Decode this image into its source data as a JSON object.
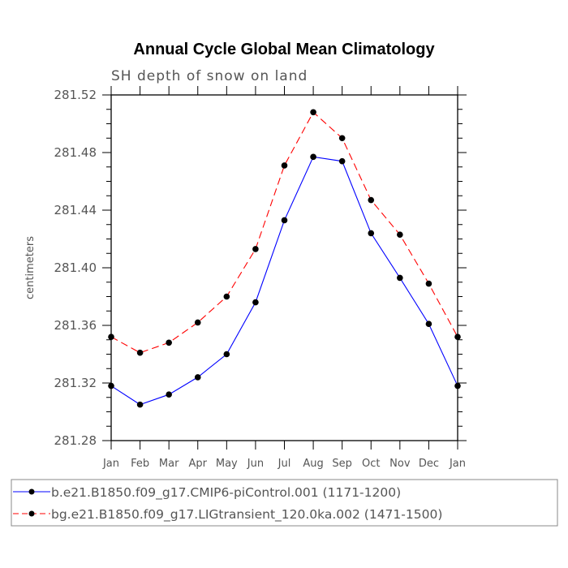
{
  "chart_data": {
    "type": "line",
    "title": "Annual Cycle Global Mean Climatology",
    "subtitle": "SH depth of snow on land",
    "xlabel": "",
    "ylabel": "centimeters",
    "ylim": [
      281.28,
      281.52
    ],
    "yticks": [
      "281.28",
      "281.32",
      "281.36",
      "281.40",
      "281.44",
      "281.48",
      "281.52"
    ],
    "categories": [
      "Jan",
      "Feb",
      "Mar",
      "Apr",
      "May",
      "Jun",
      "Jul",
      "Aug",
      "Sep",
      "Oct",
      "Nov",
      "Dec",
      "Jan"
    ],
    "grid": false,
    "legend_placement": "bottom",
    "series": [
      {
        "name": "b.e21.B1850.f09_g17.CMIP6-piControl.001 (1171-1200)",
        "color": "#0000ff",
        "style": "solid",
        "values": [
          281.318,
          281.305,
          281.312,
          281.324,
          281.34,
          281.376,
          281.433,
          281.477,
          281.474,
          281.424,
          281.393,
          281.361,
          281.318
        ]
      },
      {
        "name": "bg.e21.B1850.f09_g17.LIGtransient_120.0ka.002 (1471-1500)",
        "color": "#ff0000",
        "style": "dashed",
        "values": [
          281.352,
          281.341,
          281.348,
          281.362,
          281.38,
          281.413,
          281.471,
          281.508,
          281.49,
          281.447,
          281.423,
          281.389,
          281.352
        ]
      }
    ]
  }
}
